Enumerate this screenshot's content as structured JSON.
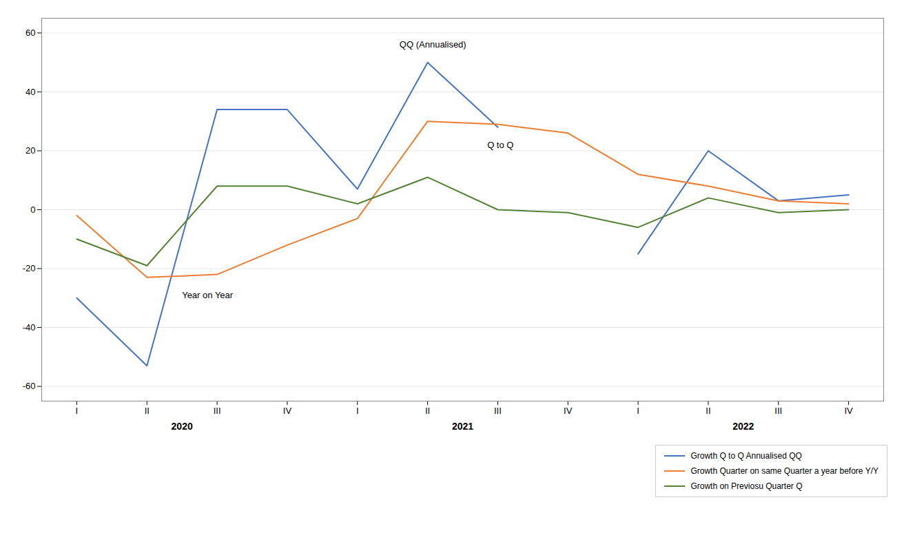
{
  "chart_data": {
    "type": "line",
    "categories": [
      "I",
      "II",
      "III",
      "IV",
      "I",
      "II",
      "III",
      "IV",
      "I",
      "II",
      "III",
      "IV"
    ],
    "series": [
      {
        "name": "Growth Q to Q Annualised QQ",
        "color": "#4472C4",
        "values": [
          -30,
          -53,
          34,
          34,
          7,
          50,
          28,
          null,
          -15,
          20,
          3,
          5
        ]
      },
      {
        "name": "Growth Quarter on same Quarter a year before Y/Y",
        "color": "#ED7D31",
        "values": [
          -2,
          -23,
          -22,
          -12,
          -3,
          30,
          29,
          26,
          12,
          8,
          3,
          2
        ]
      },
      {
        "name": "Growth on Previosu Quarter Q",
        "color": "#548235",
        "values": [
          -10,
          -19,
          8,
          8,
          2,
          11,
          0,
          -1,
          -6,
          4,
          -1,
          0
        ]
      }
    ],
    "ylim": [
      -65,
      65
    ],
    "yticks": [
      -60,
      -40,
      -20,
      0,
      20,
      40,
      60
    ],
    "grid": true,
    "legend": "lower right",
    "annotations": [
      {
        "text": "QQ (Annualised)",
        "x": 4.6,
        "y": 56
      },
      {
        "text": "Q to Q",
        "x": 5.85,
        "y": 22
      },
      {
        "text": "Year on Year",
        "x": 1.5,
        "y": -29
      }
    ],
    "x_group_labels": [
      {
        "text": "2020",
        "x": 1.5
      },
      {
        "text": "2021",
        "x": 5.5
      },
      {
        "text": "2022",
        "x": 9.5
      }
    ]
  }
}
